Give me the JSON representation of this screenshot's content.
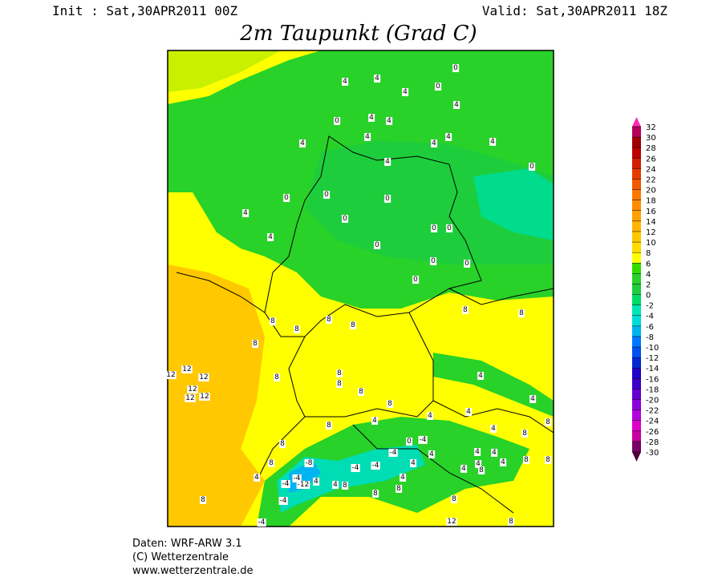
{
  "header": {
    "init": "Init : Sat,30APR2011 00Z",
    "valid": "Valid: Sat,30APR2011 18Z",
    "title": "2m Taupunkt (Grad C)"
  },
  "colorbar": {
    "levels": [
      32,
      30,
      28,
      26,
      24,
      22,
      20,
      18,
      16,
      14,
      12,
      10,
      8,
      6,
      4,
      2,
      0,
      -2,
      -4,
      -6,
      -8,
      -10,
      -12,
      -14,
      -16,
      -18,
      -20,
      -22,
      -24,
      -26,
      -28,
      -30
    ],
    "colors": [
      "#b4005a",
      "#a00000",
      "#be0000",
      "#d21e00",
      "#e63c00",
      "#f05a00",
      "#fa7800",
      "#ff8c00",
      "#ffa000",
      "#ffb400",
      "#ffc800",
      "#ffdc00",
      "#ffff00",
      "#32dc00",
      "#28d228",
      "#1ecd3c",
      "#00dc64",
      "#00e6b4",
      "#00dcdc",
      "#00b4f0",
      "#0078ff",
      "#0050f0",
      "#0028d2",
      "#1e00c8",
      "#3c00c8",
      "#6400d2",
      "#8c00dc",
      "#b400dc",
      "#dc00c8",
      "#c800a0",
      "#780064"
    ],
    "over_color": "#ff28b4",
    "under_color": "#50003c"
  },
  "map_labels": [
    0,
    4,
    4,
    4,
    0,
    4,
    0,
    4,
    4,
    4,
    4,
    4,
    4,
    4,
    0,
    4,
    0,
    0,
    0,
    0,
    0,
    0,
    4,
    4,
    0,
    0,
    0,
    0,
    8,
    8,
    8,
    8,
    8,
    8,
    8,
    8,
    8,
    8,
    12,
    12,
    12,
    12,
    12,
    12,
    8,
    8,
    4,
    4,
    4,
    4,
    4,
    4,
    8,
    8,
    8,
    8,
    8,
    -8,
    -4,
    -12,
    -4,
    -4,
    4,
    4,
    4,
    -4,
    -4,
    -4,
    0,
    -4,
    4,
    4,
    4,
    4,
    4,
    4,
    4,
    8,
    8,
    8,
    8,
    -4,
    12,
    8,
    4,
    8,
    8,
    8,
    8
  ],
  "footer": {
    "line1": "Daten: WRF-ARW 3.1",
    "line2": "(C) Wetterzentrale",
    "line3": "www.wetterzentrale.de"
  }
}
